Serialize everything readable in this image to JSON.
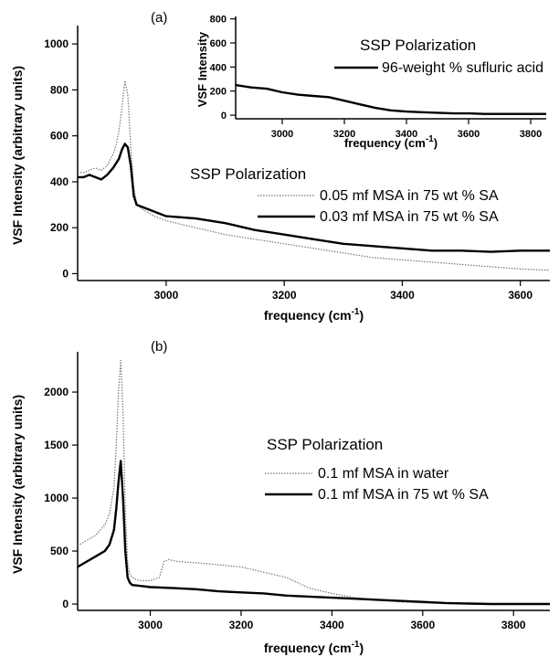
{
  "chart_data": [
    {
      "type": "line",
      "panel_label": "(a)",
      "xlabel": "frequency (cm",
      "xlabel_sup": "-1",
      "xlabel_close": ")",
      "ylabel": "VSF Intensity (arbitrary units)",
      "xlim": [
        2850,
        3650
      ],
      "ylim": [
        -30,
        1080
      ],
      "xticks": [
        3000,
        3200,
        3400,
        3600
      ],
      "yticks": [
        0,
        200,
        400,
        600,
        800,
        1000
      ],
      "legend_title": "SSP Polarization",
      "series": [
        {
          "name": "0.05 mf MSA in 75 wt % SA",
          "style": "dotted-gray",
          "x": [
            2850,
            2860,
            2870,
            2880,
            2890,
            2900,
            2910,
            2915,
            2920,
            2925,
            2930,
            2935,
            2940,
            2945,
            2950,
            2960,
            2980,
            3000,
            3050,
            3100,
            3150,
            3200,
            3250,
            3300,
            3350,
            3400,
            3450,
            3500,
            3550,
            3600,
            3650
          ],
          "y": [
            440,
            440,
            450,
            460,
            450,
            470,
            520,
            560,
            620,
            720,
            840,
            780,
            550,
            380,
            300,
            280,
            250,
            230,
            200,
            170,
            150,
            130,
            110,
            90,
            70,
            60,
            50,
            40,
            30,
            20,
            15
          ]
        },
        {
          "name": "0.03 mf MSA in 75 wt % SA",
          "style": "solid-black",
          "x": [
            2850,
            2860,
            2870,
            2880,
            2890,
            2900,
            2910,
            2920,
            2925,
            2930,
            2935,
            2940,
            2945,
            2950,
            2960,
            2980,
            3000,
            3050,
            3100,
            3150,
            3200,
            3250,
            3300,
            3350,
            3400,
            3450,
            3500,
            3550,
            3600,
            3650
          ],
          "y": [
            420,
            420,
            430,
            420,
            410,
            430,
            460,
            500,
            540,
            565,
            550,
            470,
            340,
            300,
            290,
            270,
            250,
            240,
            220,
            190,
            170,
            150,
            130,
            120,
            110,
            100,
            100,
            95,
            100,
            100
          ]
        }
      ]
    },
    {
      "type": "line",
      "panel_label": "",
      "inset_of": "(a)",
      "xlabel": "frequency (cm",
      "xlabel_sup": "-1",
      "xlabel_close": ")",
      "ylabel": "VSF Intensity",
      "xlim": [
        2850,
        3850
      ],
      "ylim": [
        -30,
        820
      ],
      "xticks": [
        3000,
        3200,
        3400,
        3600,
        3800
      ],
      "yticks": [
        0,
        200,
        400,
        600,
        800
      ],
      "legend_title": "SSP Polarization",
      "series": [
        {
          "name": "96-weight % sufluric acid",
          "style": "solid-black",
          "x": [
            2850,
            2900,
            2950,
            3000,
            3050,
            3100,
            3150,
            3200,
            3250,
            3300,
            3350,
            3400,
            3450,
            3500,
            3550,
            3600,
            3650,
            3700,
            3750,
            3800,
            3850
          ],
          "y": [
            250,
            230,
            220,
            190,
            170,
            160,
            150,
            120,
            90,
            60,
            40,
            30,
            25,
            20,
            15,
            15,
            10,
            10,
            10,
            10,
            10
          ]
        }
      ]
    },
    {
      "type": "line",
      "panel_label": "(b)",
      "xlabel": "frequency (cm",
      "xlabel_sup": "-1",
      "xlabel_close": ")",
      "ylabel": "VSF Intensity (arbitrary units)",
      "xlim": [
        2840,
        3880
      ],
      "ylim": [
        -60,
        2380
      ],
      "xticks": [
        3000,
        3200,
        3400,
        3600,
        3800
      ],
      "yticks": [
        0,
        500,
        1000,
        1500,
        2000
      ],
      "legend_title": "SSP Polarization",
      "series": [
        {
          "name": "0.1 mf MSA in water",
          "style": "dotted-gray",
          "x": [
            2840,
            2860,
            2880,
            2900,
            2910,
            2920,
            2925,
            2930,
            2935,
            2940,
            2945,
            2950,
            2955,
            2960,
            2970,
            2980,
            3000,
            3020,
            3030,
            3040,
            3060,
            3100,
            3150,
            3200,
            3250,
            3300,
            3350,
            3400,
            3450,
            3500,
            3550,
            3600,
            3650,
            3700,
            3750,
            3800,
            3880
          ],
          "y": [
            550,
            600,
            650,
            750,
            850,
            1100,
            1500,
            2000,
            2300,
            1800,
            900,
            400,
            280,
            250,
            230,
            220,
            220,
            250,
            400,
            420,
            400,
            390,
            370,
            350,
            300,
            250,
            150,
            100,
            60,
            40,
            20,
            10,
            5,
            0,
            0,
            0,
            0
          ]
        },
        {
          "name": "0.1 mf MSA in 75 wt % SA",
          "style": "solid-black",
          "x": [
            2840,
            2860,
            2880,
            2900,
            2910,
            2920,
            2925,
            2930,
            2935,
            2940,
            2945,
            2950,
            2955,
            2960,
            2980,
            3000,
            3050,
            3100,
            3150,
            3200,
            3250,
            3300,
            3350,
            3400,
            3450,
            3500,
            3550,
            3600,
            3650,
            3700,
            3750,
            3800,
            3880
          ],
          "y": [
            350,
            400,
            450,
            500,
            560,
            700,
            900,
            1150,
            1350,
            1000,
            500,
            250,
            200,
            180,
            170,
            160,
            150,
            140,
            120,
            110,
            100,
            80,
            70,
            60,
            50,
            40,
            30,
            20,
            10,
            5,
            0,
            0,
            0
          ]
        }
      ]
    }
  ]
}
